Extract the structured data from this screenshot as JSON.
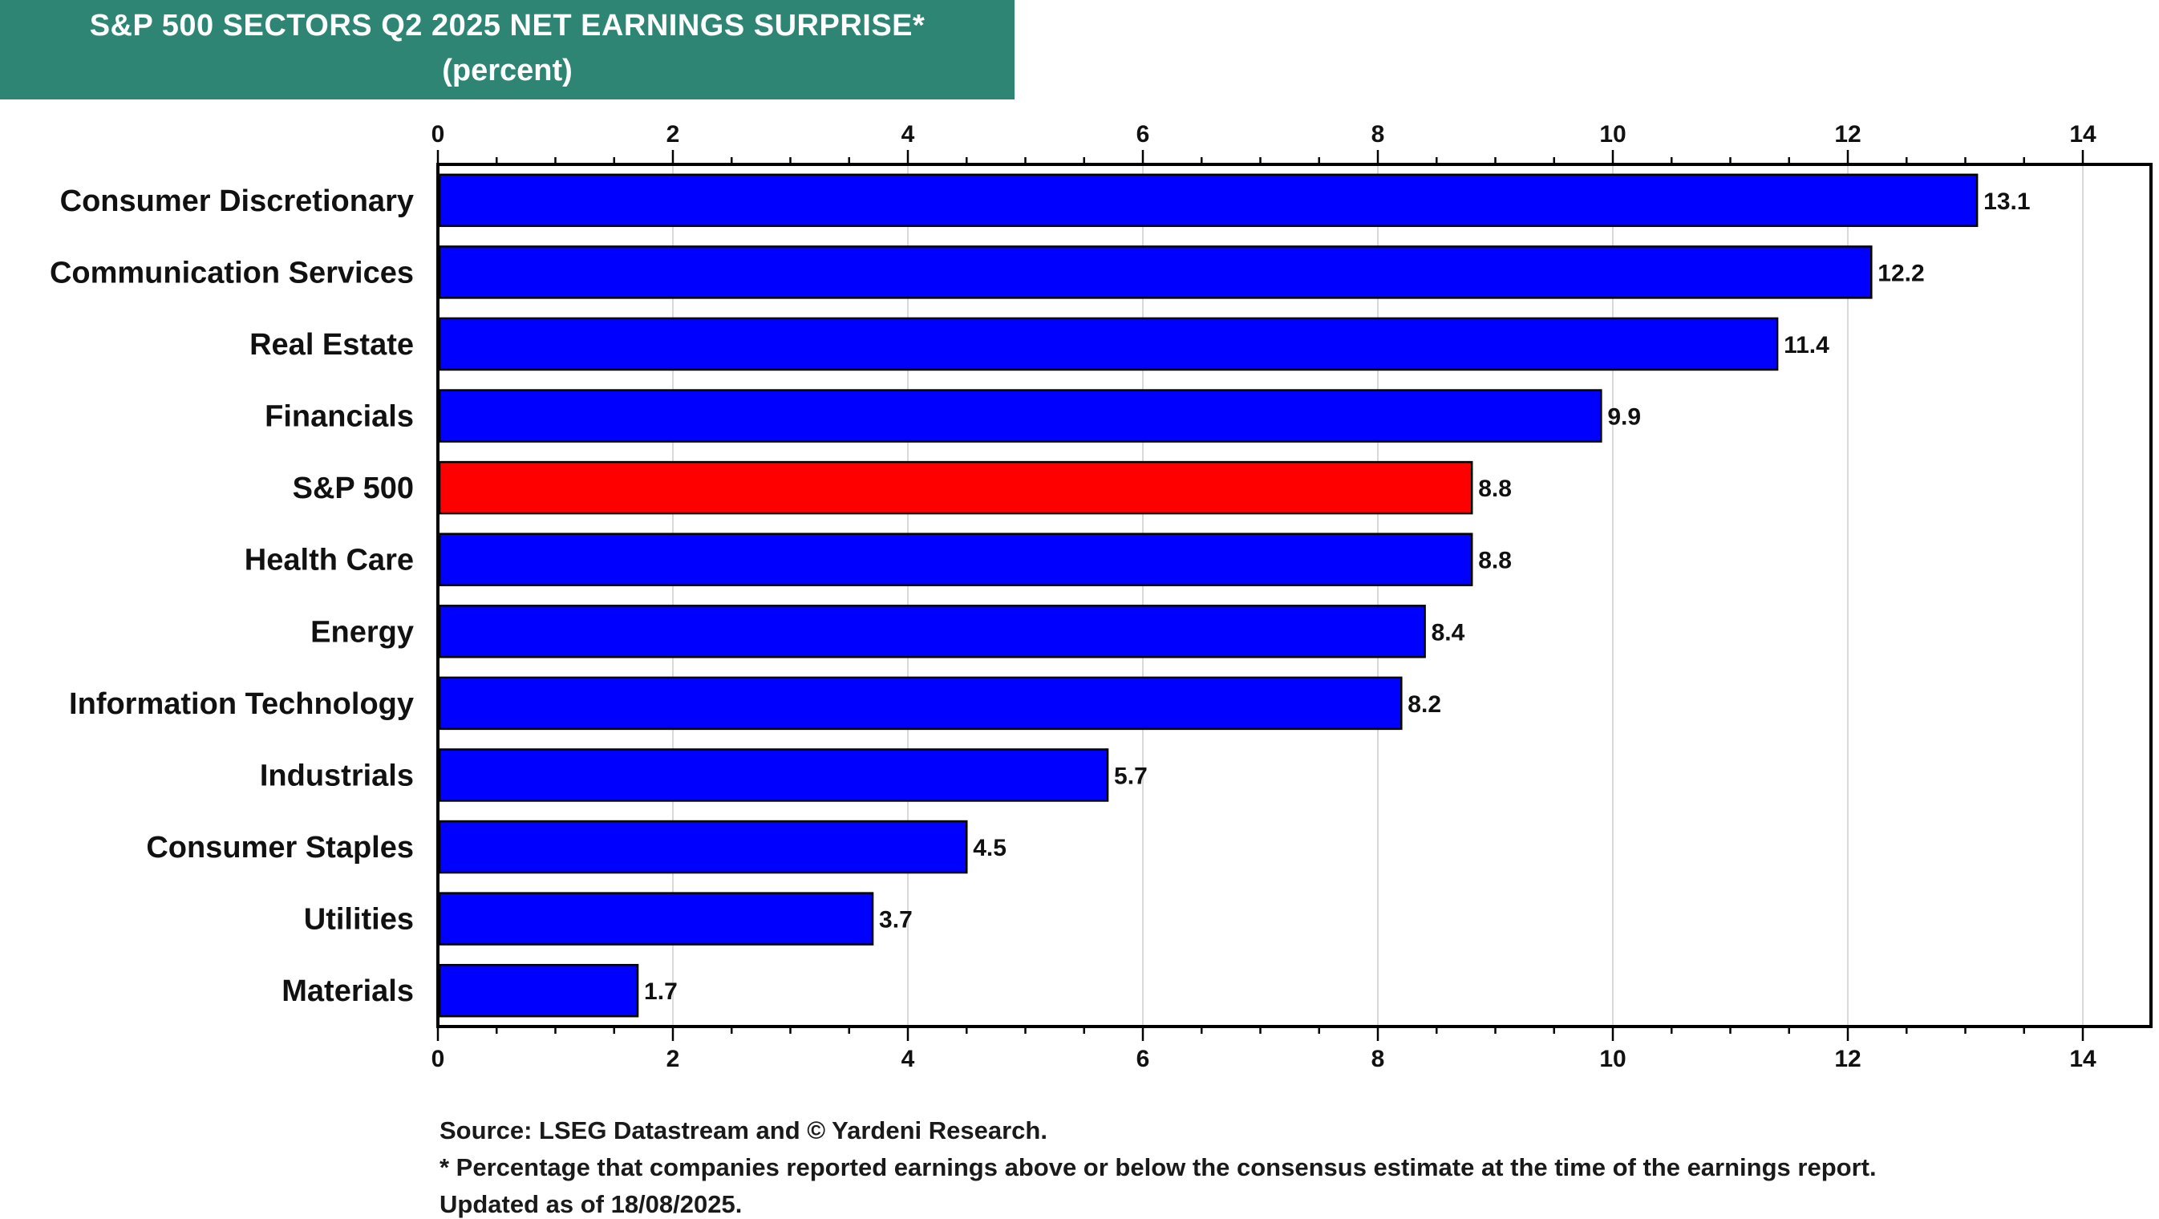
{
  "title": {
    "line1": "S&P 500 SECTORS Q2 2025 NET EARNINGS SURPRISE*",
    "line2": "(percent)"
  },
  "colors": {
    "header_bg": "#2f8574",
    "bar": "#0000ff",
    "highlight_bar": "#ff0000",
    "grid": "#d9d9d9"
  },
  "chart_data": {
    "type": "bar",
    "orientation": "horizontal",
    "title": "S&P 500 SECTORS Q2 2025 NET EARNINGS SURPRISE*",
    "subtitle": "(percent)",
    "xlabel": "",
    "ylabel": "",
    "xlim": [
      0,
      14
    ],
    "xticks": [
      "0",
      "2",
      "4",
      "6",
      "8",
      "10",
      "12",
      "14"
    ],
    "grid": true,
    "categories": [
      "Consumer Discretionary",
      "Communication Services",
      "Real Estate",
      "Financials",
      "S&P 500",
      "Health Care",
      "Energy",
      "Information Technology",
      "Industrials",
      "Consumer Staples",
      "Utilities",
      "Materials"
    ],
    "values": [
      13.1,
      12.2,
      11.4,
      9.9,
      8.8,
      8.8,
      8.4,
      8.2,
      5.7,
      4.5,
      3.7,
      1.7
    ],
    "value_labels": [
      "13.1",
      "12.2",
      "11.4",
      "9.9",
      "8.8",
      "8.8",
      "8.4",
      "8.2",
      "5.7",
      "4.5",
      "3.7",
      "1.7"
    ],
    "highlight_category": "S&P 500"
  },
  "footer": {
    "source": "Source: LSEG Datastream and © Yardeni Research.",
    "note": "* Percentage that companies reported earnings above or below the consensus estimate at the time of the earnings report.",
    "updated": "Updated as of 18/08/2025."
  }
}
